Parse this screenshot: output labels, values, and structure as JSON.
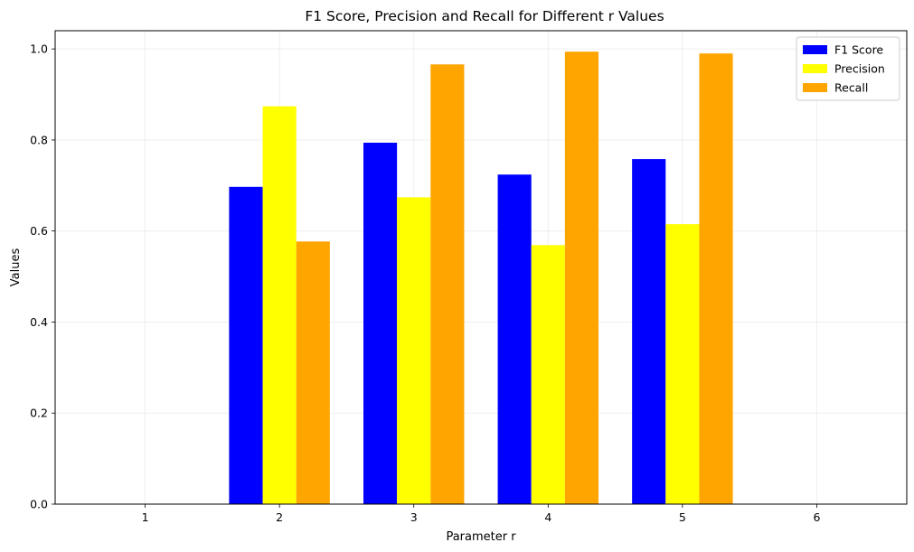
{
  "chart_data": {
    "type": "bar",
    "title": "F1 Score, Precision and Recall for Different r Values",
    "xlabel": "Parameter r",
    "ylabel": "Values",
    "categories": [
      "1",
      "2",
      "3",
      "4",
      "5",
      "6"
    ],
    "x_values": [
      1,
      2,
      3,
      4,
      5,
      6
    ],
    "xlim": [
      0.33,
      6.67
    ],
    "ylim": [
      0,
      1.04
    ],
    "yticks": [
      0.0,
      0.2,
      0.4,
      0.6,
      0.8,
      1.0
    ],
    "ytick_labels": [
      "0.0",
      "0.2",
      "0.4",
      "0.6",
      "0.8",
      "1.0"
    ],
    "grid": true,
    "legend_position": "top-right",
    "series": [
      {
        "name": "F1 Score",
        "color": "#0000ff",
        "values": [
          null,
          0.697,
          0.794,
          0.724,
          0.758,
          null
        ]
      },
      {
        "name": "Precision",
        "color": "#ffff00",
        "values": [
          null,
          0.874,
          0.674,
          0.569,
          0.615,
          null
        ]
      },
      {
        "name": "Recall",
        "color": "#ffa500",
        "values": [
          null,
          0.577,
          0.966,
          0.994,
          0.99,
          null
        ]
      }
    ]
  }
}
